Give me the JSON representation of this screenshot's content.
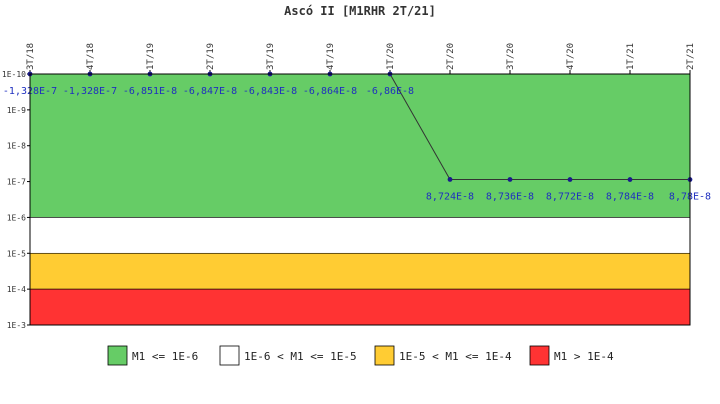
{
  "chart_data": {
    "type": "line",
    "title": "Ascó II [M1RHR 2T/21]",
    "x": [
      "3T/18",
      "4T/18",
      "1T/19",
      "2T/19",
      "3T/19",
      "4T/19",
      "1T/20",
      "2T/20",
      "3T/20",
      "4T/20",
      "1T/21",
      "2T/21"
    ],
    "series": [
      {
        "values": [
          -1.328e-07,
          -1.328e-07,
          -6.851e-08,
          -6.847e-08,
          -6.843e-08,
          -6.864e-08,
          -6.86e-08,
          8.724e-08,
          8.736e-08,
          8.772e-08,
          8.784e-08,
          8.78e-08
        ],
        "labels": [
          "-1,328E-7",
          "-1,328E-7",
          "-6,851E-8",
          "-6,847E-8",
          "-6,843E-8",
          "-6,864E-8",
          "-6,86E-8",
          "8,724E-8",
          "8,736E-8",
          "8,772E-8",
          "8,784E-8",
          "8,78E-8"
        ],
        "color": "#1a1a8c"
      }
    ],
    "y_scale": "log",
    "y_range": [
      1e-10,
      0.001
    ],
    "y_axis_direction": "increasing-downward",
    "y_ticks": [
      "1E-10",
      "1E-9",
      "1E-8",
      "1E-7",
      "1E-6",
      "1E-5",
      "1E-4",
      "1E-3"
    ],
    "non_positive_values_clamped_to": 1e-10,
    "bands": [
      {
        "from": 1e-10,
        "to": 1e-06,
        "color": "#66cc66",
        "legend": "M1 <= 1E-6"
      },
      {
        "from": 1e-06,
        "to": 1e-05,
        "color": "#ffffff",
        "legend": "1E-6 < M1 <= 1E-5"
      },
      {
        "from": 1e-05,
        "to": 0.0001,
        "color": "#ffcc33",
        "legend": "1E-5 < M1 <= 1E-4"
      },
      {
        "from": 0.0001,
        "to": 0.001,
        "color": "#ff3333",
        "legend": "M1 > 1E-4"
      }
    ],
    "legend_position": "bottom",
    "grid": false
  }
}
